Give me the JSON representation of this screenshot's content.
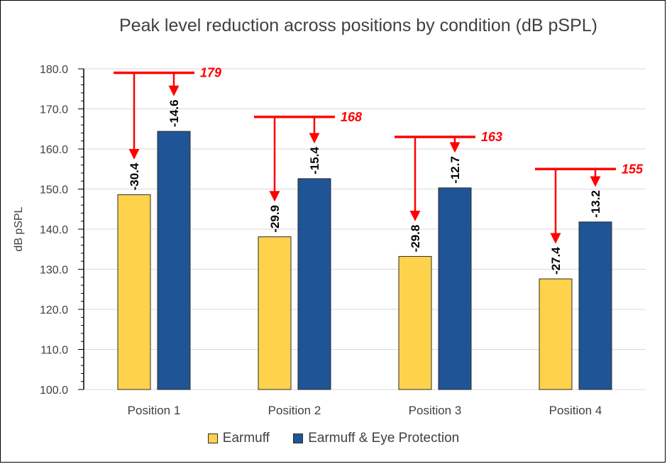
{
  "chart_data": {
    "type": "bar",
    "title": "Peak level reduction across positions by condition (dB pSPL)",
    "ylabel": "dB pSPL",
    "xlabel": "",
    "ylim": [
      100,
      180
    ],
    "y_ticks": [
      "100.0",
      "110.0",
      "120.0",
      "130.0",
      "140.0",
      "150.0",
      "160.0",
      "170.0",
      "180.0"
    ],
    "categories": [
      "Position 1",
      "Position 2",
      "Position 3",
      "Position 4"
    ],
    "series": [
      {
        "name": "Earmuff",
        "color": "#FFD24B",
        "values": [
          148.6,
          138.1,
          133.2,
          127.6
        ],
        "data_labels": [
          "-30.4",
          "-29.9",
          "-29.8",
          "-27.4"
        ]
      },
      {
        "name": "Earmuff & Eye Protection",
        "color": "#1F5597",
        "values": [
          164.4,
          152.6,
          150.3,
          141.8
        ],
        "data_labels": [
          "-14.6",
          "-15.4",
          "-12.7",
          "-13.2"
        ]
      }
    ],
    "peak_values": [
      179,
      168,
      163,
      155
    ],
    "peak_labels": [
      "179",
      "168",
      "163",
      "155"
    ],
    "annotation_color": "#FF0000",
    "grid": true,
    "legend_position": "bottom"
  }
}
